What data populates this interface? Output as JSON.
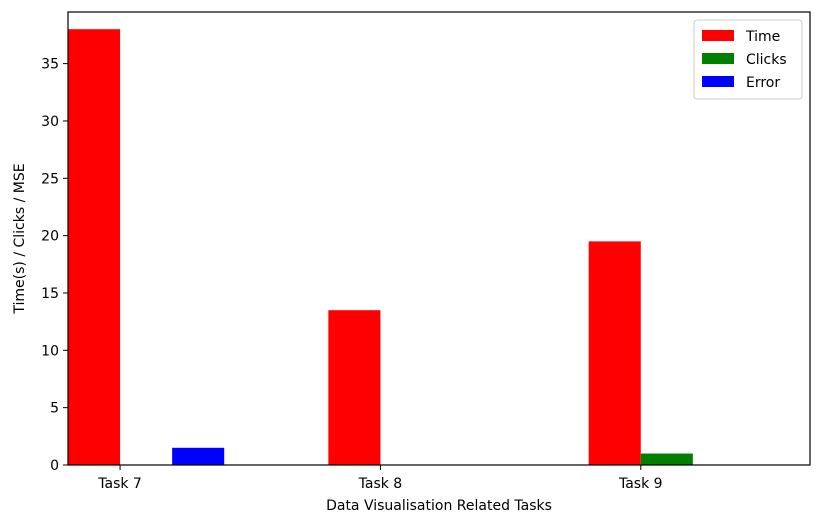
{
  "chart_data": {
    "type": "bar",
    "title": "",
    "xlabel": "Data Visualisation Related Tasks",
    "ylabel": "Time(s) / Clicks / MSE",
    "categories": [
      "Task 7",
      "Task 8",
      "Task 9"
    ],
    "series": [
      {
        "name": "Time",
        "color": "#ff0000",
        "values": [
          38.0,
          13.5,
          19.5
        ]
      },
      {
        "name": "Clicks",
        "color": "#008000",
        "values": [
          0,
          0,
          1.0
        ]
      },
      {
        "name": "Error",
        "color": "#0000ff",
        "values": [
          1.5,
          0,
          0
        ]
      }
    ],
    "ylim": [
      0,
      39.5
    ],
    "yticks": [
      0,
      5,
      10,
      15,
      20,
      25,
      30,
      35
    ],
    "grid": false,
    "legend_position": "top-right"
  }
}
